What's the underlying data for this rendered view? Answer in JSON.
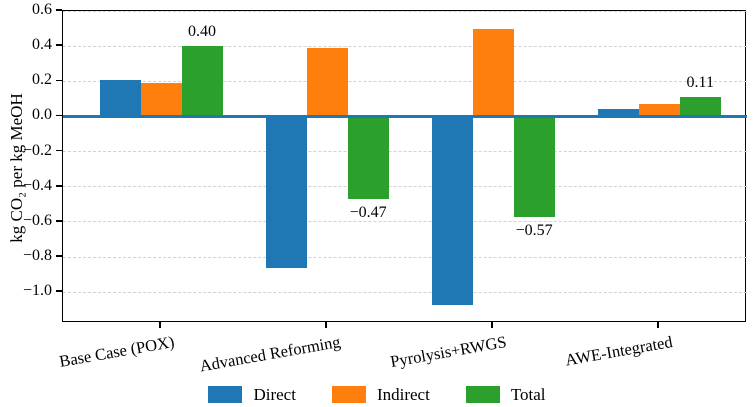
{
  "chart_data": {
    "type": "bar",
    "title": "",
    "categories": [
      "Base Case (POX)",
      "Advanced Reforming",
      "Pyrolysis+RWGS",
      "AWE-Integrated"
    ],
    "series": [
      {
        "name": "Direct",
        "color": "#1f77b4",
        "values": [
          0.21,
          -0.86,
          -1.07,
          0.04
        ]
      },
      {
        "name": "Indirect",
        "color": "#ff7f0e",
        "values": [
          0.19,
          0.39,
          0.5,
          0.07
        ]
      },
      {
        "name": "Total",
        "color": "#2ca02c",
        "values": [
          0.4,
          -0.47,
          -0.57,
          0.11
        ]
      }
    ],
    "total_value_labels": [
      "0.40",
      "−0.47",
      "−0.57",
      "0.11"
    ],
    "xlabel": "",
    "ylabel": "kg CO₂ per kg MeOH",
    "ylim": [
      -1.175,
      0.6
    ],
    "yticks": [
      0.6,
      0.4,
      0.2,
      0.0,
      -0.2,
      -0.4,
      -0.6,
      -0.8,
      -1.0
    ],
    "ytick_labels": [
      "0.6",
      "0.4",
      "0.2",
      "0.0",
      "−0.2",
      "−0.4",
      "−0.6",
      "−0.8",
      "−1.0"
    ],
    "grid": "horizontal-dashed",
    "grid_color": "#d2d2d2",
    "zero_line_color": "#1f77b4",
    "spine_color": "#000000",
    "legend": {
      "position": "bottom-center",
      "entries": [
        {
          "label": "Direct",
          "color": "#1f77b4"
        },
        {
          "label": "Indirect",
          "color": "#ff7f0e"
        },
        {
          "label": "Total",
          "color": "#2ca02c"
        }
      ]
    }
  }
}
